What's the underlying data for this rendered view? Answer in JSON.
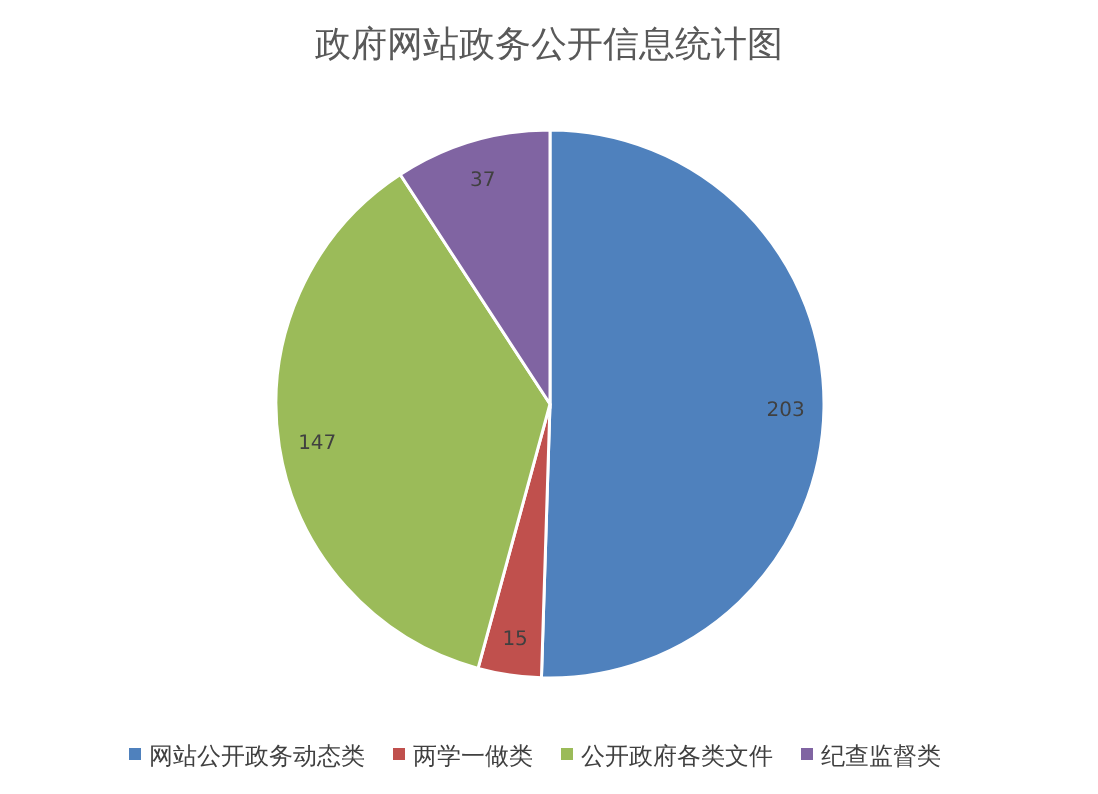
{
  "chart_data": {
    "type": "pie",
    "title": "政府网站政务公开信息统计图",
    "categories": [
      "网站公开政务动态类",
      "两学一做类",
      "公开政府各类文件",
      "纪查监督类"
    ],
    "values": [
      203,
      15,
      147,
      37
    ],
    "colors": [
      "#4f81bd",
      "#c0504d",
      "#9bbb59",
      "#8064a2"
    ],
    "data_labels": true,
    "legend": "bottom"
  }
}
